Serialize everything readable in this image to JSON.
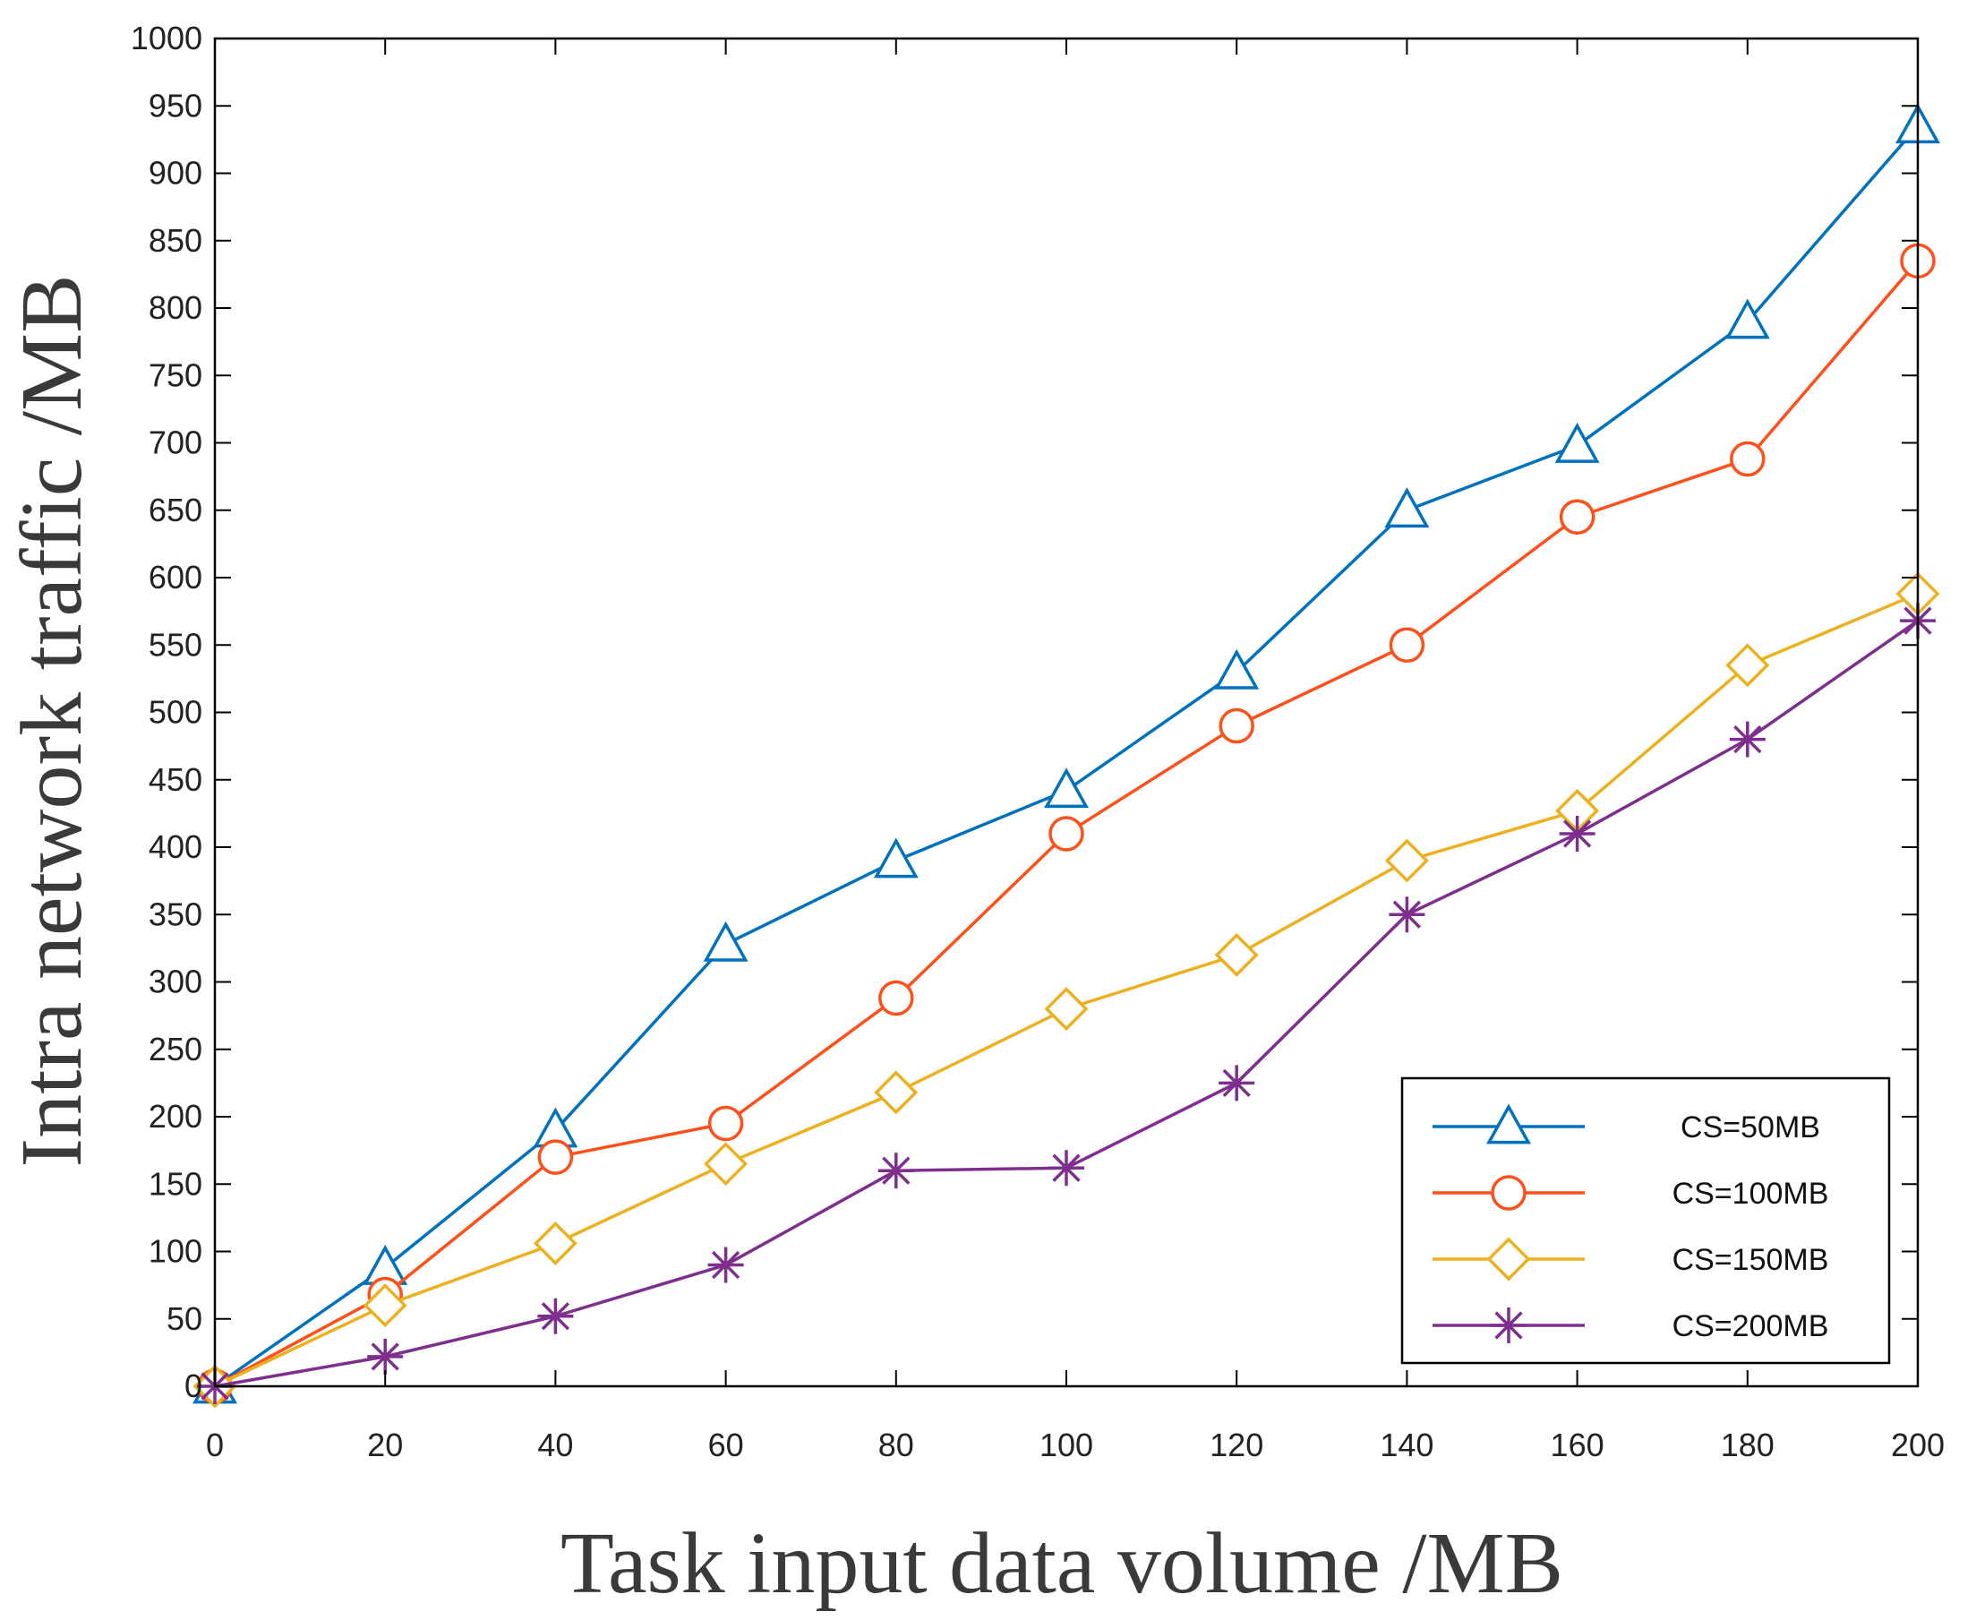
{
  "chart_data": {
    "type": "line",
    "title": "",
    "xlabel": "Task input data volume /MB",
    "ylabel": "Intra network traffic /MB",
    "xlim": [
      0,
      200
    ],
    "ylim": [
      0,
      1000
    ],
    "x_ticks": [
      0,
      20,
      40,
      60,
      80,
      100,
      120,
      140,
      160,
      180,
      200
    ],
    "y_ticks": [
      0,
      50,
      100,
      150,
      200,
      250,
      300,
      350,
      400,
      450,
      500,
      550,
      600,
      650,
      700,
      750,
      800,
      850,
      900,
      950,
      1000
    ],
    "x": [
      0,
      20,
      40,
      60,
      80,
      100,
      120,
      140,
      160,
      180,
      200
    ],
    "grid": false,
    "legend_position": "bottom-right",
    "series": [
      {
        "name": "CS=50MB",
        "color": "#0072bd",
        "marker": "triangle",
        "values": [
          0,
          88,
          190,
          328,
          390,
          442,
          530,
          650,
          698,
          790,
          935
        ]
      },
      {
        "name": "CS=100MB",
        "color": "#ff4f1a",
        "marker": "circle",
        "values": [
          0,
          68,
          170,
          195,
          288,
          410,
          490,
          550,
          645,
          688,
          835
        ]
      },
      {
        "name": "CS=150MB",
        "color": "#edb120",
        "marker": "diamond",
        "values": [
          0,
          60,
          106,
          165,
          218,
          280,
          320,
          390,
          427,
          535,
          588
        ]
      },
      {
        "name": "CS=200MB",
        "color": "#7e2f8e",
        "marker": "asterisk",
        "values": [
          0,
          22,
          52,
          90,
          160,
          162,
          225,
          350,
          410,
          480,
          568
        ]
      }
    ]
  }
}
